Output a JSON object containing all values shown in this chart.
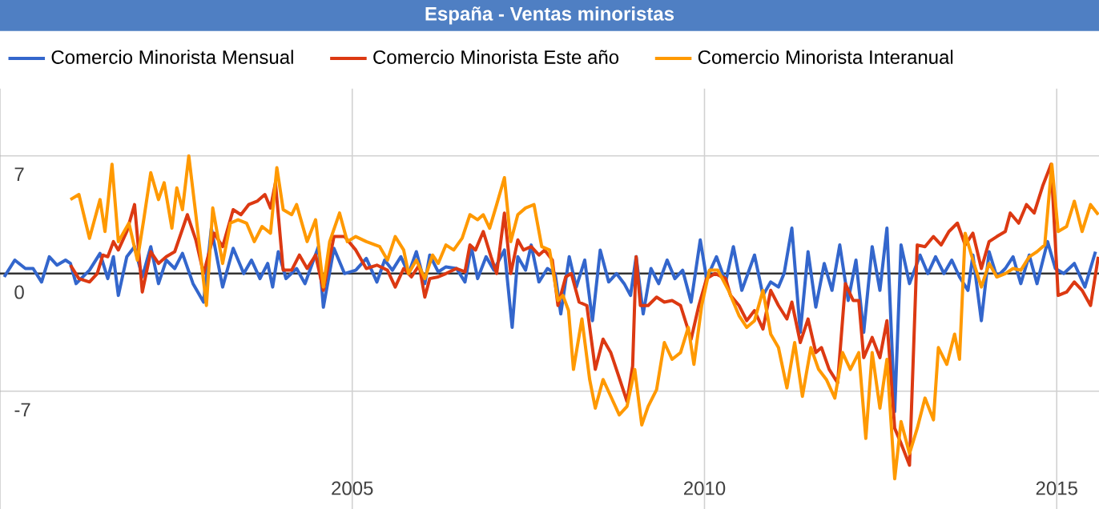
{
  "chart_data": {
    "type": "line",
    "title": "España - Ventas minoristas",
    "xlim": [
      2000.0,
      2015.6
    ],
    "xticks": [
      2005,
      2010,
      2015
    ],
    "ylim": [
      -14,
      11
    ],
    "yticks": [
      -7,
      0,
      7
    ],
    "grid": true,
    "legend": "top",
    "marker": "none",
    "line_style": "solid",
    "ref_lines": [
      {
        "axis": "y",
        "value": 0,
        "color": "#333333"
      }
    ],
    "series": [
      {
        "name": "Comercio Minorista Mensual",
        "color": "#3366cc",
        "x": [
          2000.06,
          2000.21,
          2000.36,
          2000.47,
          2000.59,
          2000.7,
          2000.81,
          2000.93,
          2001.0,
          2001.08,
          2001.27,
          2001.42,
          2001.53,
          2001.61,
          2001.68,
          2001.8,
          2001.91,
          2002.02,
          2002.14,
          2002.25,
          2002.36,
          2002.48,
          2002.59,
          2002.74,
          2002.89,
          2003.0,
          2003.16,
          2003.31,
          2003.46,
          2003.57,
          2003.69,
          2003.8,
          2003.87,
          2003.95,
          2004.06,
          2004.21,
          2004.33,
          2004.52,
          2004.59,
          2004.74,
          2004.89,
          2005.05,
          2005.2,
          2005.35,
          2005.46,
          2005.57,
          2005.69,
          2005.8,
          2005.91,
          2006.03,
          2006.1,
          2006.22,
          2006.33,
          2006.48,
          2006.6,
          2006.69,
          2006.78,
          2006.9,
          2007.01,
          2007.16,
          2007.27,
          2007.35,
          2007.46,
          2007.54,
          2007.65,
          2007.77,
          2007.88,
          2007.96,
          2008.08,
          2008.18,
          2008.3,
          2008.41,
          2008.52,
          2008.64,
          2008.75,
          2008.86,
          2008.95,
          2009.03,
          2009.13,
          2009.24,
          2009.35,
          2009.47,
          2009.58,
          2009.69,
          2009.81,
          2009.94,
          2010.03,
          2010.17,
          2010.3,
          2010.41,
          2010.53,
          2010.71,
          2010.83,
          2010.94,
          2011.05,
          2011.13,
          2011.24,
          2011.36,
          2011.47,
          2011.58,
          2011.7,
          2011.81,
          2011.92,
          2012.04,
          2012.15,
          2012.26,
          2012.38,
          2012.49,
          2012.59,
          2012.7,
          2012.79,
          2012.91,
          2013.06,
          2013.17,
          2013.28,
          2013.4,
          2013.51,
          2013.62,
          2013.74,
          2013.81,
          2013.93,
          2014.04,
          2014.15,
          2014.27,
          2014.38,
          2014.49,
          2014.61,
          2014.72,
          2014.87,
          2014.98,
          2015.1,
          2015.25,
          2015.4,
          2015.55
        ],
        "values": [
          -0.2,
          0.8,
          0.3,
          0.3,
          -0.5,
          1.0,
          0.5,
          0.8,
          0.6,
          -0.6,
          0.2,
          1.2,
          -0.3,
          1.0,
          -1.3,
          1.0,
          1.6,
          -0.2,
          1.6,
          -0.6,
          0.8,
          0.3,
          1.2,
          -0.6,
          -1.7,
          2.7,
          -0.8,
          1.5,
          0.0,
          0.8,
          -0.3,
          0.6,
          -0.8,
          1.3,
          -0.3,
          0.3,
          -0.6,
          1.6,
          -2.0,
          1.5,
          0.0,
          0.2,
          0.9,
          -0.5,
          0.8,
          0.2,
          1.0,
          0.0,
          1.3,
          -0.6,
          1.1,
          0.1,
          0.4,
          0.3,
          -0.5,
          1.6,
          -0.3,
          1.0,
          0.2,
          1.4,
          -3.2,
          1.0,
          0.2,
          1.7,
          -0.5,
          0.3,
          0.0,
          -2.4,
          1.0,
          -0.8,
          0.8,
          -2.8,
          1.4,
          -0.5,
          0.0,
          -0.6,
          -1.3,
          1.0,
          -2.4,
          0.3,
          -0.6,
          0.8,
          -0.3,
          0.2,
          -1.7,
          2.0,
          -0.3,
          1.0,
          -0.5,
          1.6,
          -1.0,
          1.1,
          -1.3,
          -0.5,
          -0.8,
          0.0,
          2.7,
          -3.5,
          1.3,
          -2.0,
          0.6,
          -1.0,
          1.7,
          -1.6,
          0.8,
          -3.5,
          1.6,
          -1.0,
          2.7,
          -8.2,
          1.7,
          -0.6,
          1.1,
          0.0,
          1.0,
          0.0,
          0.8,
          -0.2,
          -1.0,
          1.1,
          -2.8,
          1.3,
          -0.2,
          0.3,
          1.0,
          -0.6,
          1.1,
          -0.6,
          1.9,
          0.3,
          0.0,
          0.6,
          -0.8,
          1.3
        ]
      },
      {
        "name": "Comercio Minorista Este año",
        "color": "#dc3912",
        "x": [
          2001.0,
          2001.12,
          2001.27,
          2001.38,
          2001.46,
          2001.53,
          2001.61,
          2001.68,
          2001.8,
          2001.91,
          2002.02,
          2002.14,
          2002.25,
          2002.36,
          2002.48,
          2002.66,
          2002.78,
          2002.89,
          2003.04,
          2003.16,
          2003.31,
          2003.42,
          2003.53,
          2003.65,
          2003.76,
          2003.84,
          2003.91,
          2004.02,
          2004.14,
          2004.25,
          2004.36,
          2004.48,
          2004.59,
          2004.74,
          2004.89,
          2005.05,
          2005.2,
          2005.35,
          2005.5,
          2005.61,
          2005.73,
          2005.84,
          2005.95,
          2006.03,
          2006.1,
          2006.22,
          2006.33,
          2006.48,
          2006.6,
          2006.67,
          2006.75,
          2006.86,
          2006.97,
          2007.05,
          2007.16,
          2007.25,
          2007.35,
          2007.43,
          2007.54,
          2007.65,
          2007.73,
          2007.84,
          2007.92,
          2008.03,
          2008.11,
          2008.22,
          2008.33,
          2008.45,
          2008.56,
          2008.67,
          2008.79,
          2008.9,
          2008.98,
          2009.03,
          2009.09,
          2009.2,
          2009.32,
          2009.43,
          2009.54,
          2009.66,
          2009.81,
          2009.92,
          2010.03,
          2010.15,
          2010.3,
          2010.37,
          2010.49,
          2010.6,
          2010.71,
          2010.83,
          2010.94,
          2011.05,
          2011.17,
          2011.24,
          2011.36,
          2011.47,
          2011.58,
          2011.66,
          2011.77,
          2011.89,
          2012.0,
          2012.11,
          2012.19,
          2012.26,
          2012.38,
          2012.49,
          2012.59,
          2012.7,
          2012.79,
          2012.91,
          2013.02,
          2013.13,
          2013.25,
          2013.36,
          2013.47,
          2013.59,
          2013.7,
          2013.81,
          2013.93,
          2014.04,
          2014.15,
          2014.27,
          2014.34,
          2014.46,
          2014.57,
          2014.68,
          2014.8,
          2014.92,
          2015.02,
          2015.14,
          2015.25,
          2015.36,
          2015.48,
          2015.59
        ],
        "values": [
          0.5,
          -0.3,
          -0.5,
          0.0,
          1.1,
          1.0,
          1.9,
          1.4,
          2.5,
          4.1,
          -1.1,
          1.3,
          0.6,
          1.0,
          1.3,
          3.5,
          2.0,
          0.0,
          2.4,
          1.6,
          3.8,
          3.5,
          4.1,
          4.3,
          4.7,
          3.9,
          5.4,
          0.2,
          0.2,
          1.1,
          0.3,
          1.1,
          -1.0,
          2.2,
          2.2,
          1.4,
          0.3,
          0.5,
          0.2,
          -0.8,
          0.3,
          -0.2,
          0.5,
          -1.4,
          -0.3,
          -0.2,
          0.0,
          0.3,
          0.1,
          1.7,
          1.4,
          2.5,
          1.0,
          0.0,
          3.6,
          0.0,
          2.0,
          1.4,
          1.6,
          1.1,
          1.4,
          0.8,
          -1.9,
          -0.2,
          0.0,
          -1.7,
          -1.9,
          -5.7,
          -3.9,
          -4.7,
          -6.2,
          -7.6,
          -5.5,
          1.0,
          -1.9,
          -1.9,
          -1.4,
          -1.7,
          -1.6,
          -1.9,
          -3.9,
          -1.9,
          -0.3,
          0.0,
          -0.3,
          -1.3,
          -1.9,
          -2.8,
          -2.2,
          -3.3,
          -1.0,
          -1.9,
          -2.7,
          -1.7,
          -4.1,
          -2.7,
          -4.7,
          -4.4,
          -5.7,
          -6.5,
          -0.6,
          -1.6,
          -1.6,
          -5.0,
          -3.8,
          -5.0,
          -2.8,
          -9.2,
          -10.1,
          -11.4,
          1.7,
          1.6,
          2.2,
          1.7,
          2.5,
          3.0,
          1.7,
          2.4,
          0.3,
          1.9,
          2.2,
          2.5,
          3.6,
          3.0,
          4.1,
          3.6,
          5.2,
          6.5,
          -1.3,
          -1.1,
          -0.5,
          -1.0,
          -1.9,
          1.0
        ]
      },
      {
        "name": "Comercio Minorista Interanual",
        "color": "#ff9900",
        "x": [
          2001.0,
          2001.12,
          2001.27,
          2001.42,
          2001.49,
          2001.59,
          2001.68,
          2001.83,
          2001.95,
          2002.04,
          2002.14,
          2002.25,
          2002.33,
          2002.44,
          2002.51,
          2002.59,
          2002.68,
          2002.78,
          2002.93,
          2003.02,
          2003.16,
          2003.27,
          2003.38,
          2003.5,
          2003.61,
          2003.72,
          2003.84,
          2003.93,
          2004.02,
          2004.14,
          2004.21,
          2004.36,
          2004.48,
          2004.59,
          2004.68,
          2004.82,
          2004.93,
          2005.05,
          2005.2,
          2005.39,
          2005.5,
          2005.61,
          2005.73,
          2005.8,
          2005.91,
          2006.03,
          2006.14,
          2006.22,
          2006.33,
          2006.44,
          2006.56,
          2006.67,
          2006.78,
          2006.86,
          2006.95,
          2007.05,
          2007.16,
          2007.25,
          2007.35,
          2007.46,
          2007.58,
          2007.69,
          2007.8,
          2007.92,
          2007.99,
          2008.07,
          2008.14,
          2008.26,
          2008.37,
          2008.45,
          2008.56,
          2008.67,
          2008.79,
          2008.9,
          2009.01,
          2009.11,
          2009.2,
          2009.32,
          2009.43,
          2009.54,
          2009.66,
          2009.77,
          2009.85,
          2009.96,
          2010.07,
          2010.19,
          2010.34,
          2010.49,
          2010.6,
          2010.71,
          2010.83,
          2010.94,
          2011.05,
          2011.17,
          2011.28,
          2011.39,
          2011.51,
          2011.62,
          2011.73,
          2011.85,
          2011.96,
          2012.07,
          2012.19,
          2012.29,
          2012.38,
          2012.49,
          2012.59,
          2012.7,
          2012.79,
          2012.91,
          2013.02,
          2013.13,
          2013.25,
          2013.32,
          2013.44,
          2013.55,
          2013.62,
          2013.7,
          2013.81,
          2013.93,
          2014.04,
          2014.15,
          2014.27,
          2014.38,
          2014.49,
          2014.61,
          2014.72,
          2014.83,
          2014.93,
          2015.02,
          2015.14,
          2015.25,
          2015.36,
          2015.48,
          2015.59
        ],
        "values": [
          4.4,
          4.7,
          2.1,
          4.4,
          2.5,
          6.5,
          1.9,
          3.0,
          0.8,
          3.2,
          6.0,
          4.4,
          5.4,
          2.7,
          5.1,
          3.8,
          7.0,
          3.5,
          -1.9,
          3.9,
          0.6,
          3.0,
          3.2,
          3.0,
          1.9,
          2.8,
          2.4,
          6.3,
          3.8,
          3.5,
          4.1,
          1.9,
          3.2,
          -0.8,
          1.9,
          3.6,
          1.9,
          2.2,
          1.9,
          1.6,
          0.8,
          2.2,
          1.4,
          0.0,
          0.8,
          -0.3,
          1.1,
          0.6,
          1.7,
          1.4,
          2.1,
          3.5,
          3.2,
          3.5,
          2.7,
          4.1,
          5.7,
          1.9,
          3.5,
          3.9,
          4.1,
          1.6,
          1.4,
          -1.6,
          -1.3,
          -2.2,
          -5.7,
          -2.7,
          -6.3,
          -8.0,
          -6.3,
          -7.3,
          -8.4,
          -7.9,
          -5.7,
          -9.0,
          -7.9,
          -6.9,
          -4.1,
          -5.1,
          -4.7,
          -3.2,
          -5.4,
          -1.9,
          0.2,
          0.2,
          -1.0,
          -2.5,
          -3.2,
          -2.8,
          -1.0,
          -3.6,
          -4.4,
          -6.8,
          -4.1,
          -7.3,
          -4.4,
          -5.7,
          -6.3,
          -7.4,
          -4.7,
          -5.7,
          -4.7,
          -9.8,
          -4.7,
          -8.0,
          -5.1,
          -12.2,
          -8.8,
          -10.7,
          -9.2,
          -7.4,
          -8.7,
          -4.4,
          -5.4,
          -3.6,
          -5.1,
          2.4,
          0.8,
          -0.8,
          0.6,
          -0.2,
          0.0,
          0.3,
          0.2,
          1.0,
          1.3,
          1.7,
          6.5,
          2.5,
          2.8,
          4.3,
          2.5,
          4.1,
          3.5
        ]
      }
    ]
  }
}
